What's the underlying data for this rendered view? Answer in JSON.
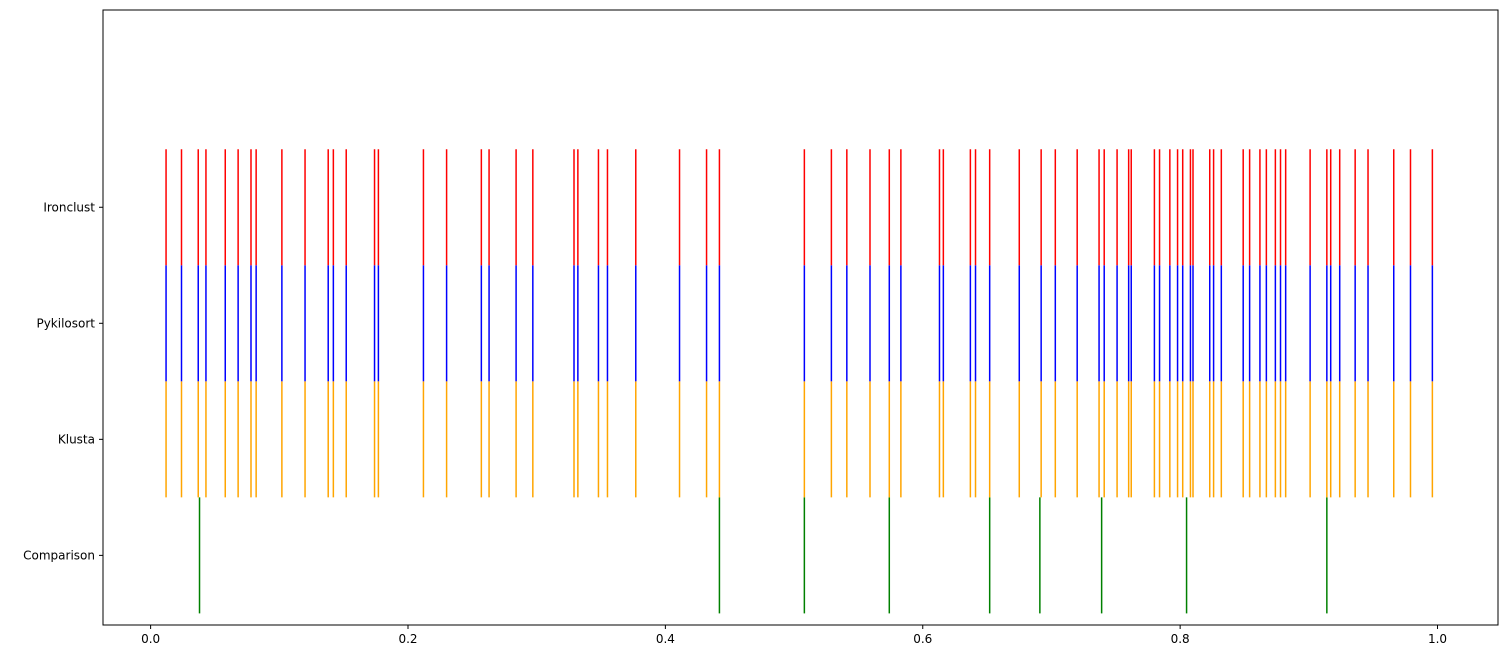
{
  "chart_data": {
    "type": "eventplot",
    "title": "",
    "xlabel": "",
    "ylabel": "",
    "xlim": [
      -0.037,
      1.047
    ],
    "ylim": [
      -0.6,
      4.7
    ],
    "x_ticks": [
      0.0,
      0.2,
      0.4,
      0.6,
      0.8,
      1.0
    ],
    "x_tick_labels": [
      "0.0",
      "0.2",
      "0.4",
      "0.6",
      "0.8",
      "1.0"
    ],
    "grid": false,
    "legend": null,
    "series": [
      {
        "label": "Comparison",
        "color": "#008000",
        "row": 0,
        "events": [
          0.038,
          0.442,
          0.508,
          0.574,
          0.652,
          0.691,
          0.739,
          0.805,
          0.914
        ]
      },
      {
        "label": "Klusta",
        "color": "#ffa500",
        "row": 1,
        "events": [
          0.012,
          0.024,
          0.037,
          0.043,
          0.058,
          0.068,
          0.078,
          0.082,
          0.102,
          0.12,
          0.138,
          0.142,
          0.152,
          0.174,
          0.177,
          0.212,
          0.23,
          0.257,
          0.263,
          0.284,
          0.297,
          0.329,
          0.332,
          0.348,
          0.355,
          0.377,
          0.411,
          0.432,
          0.442,
          0.508,
          0.529,
          0.541,
          0.559,
          0.574,
          0.583,
          0.613,
          0.616,
          0.637,
          0.641,
          0.652,
          0.675,
          0.692,
          0.703,
          0.72,
          0.737,
          0.741,
          0.751,
          0.76,
          0.762,
          0.78,
          0.784,
          0.792,
          0.798,
          0.802,
          0.808,
          0.81,
          0.823,
          0.826,
          0.832,
          0.849,
          0.854,
          0.862,
          0.867,
          0.874,
          0.878,
          0.882,
          0.901,
          0.914,
          0.917,
          0.924,
          0.936,
          0.946,
          0.966,
          0.979,
          0.996
        ]
      },
      {
        "label": "Pykilosort",
        "color": "#0000ff",
        "row": 2,
        "events": [
          0.012,
          0.024,
          0.037,
          0.043,
          0.058,
          0.068,
          0.078,
          0.082,
          0.102,
          0.12,
          0.138,
          0.142,
          0.152,
          0.174,
          0.177,
          0.212,
          0.23,
          0.257,
          0.263,
          0.284,
          0.297,
          0.329,
          0.332,
          0.348,
          0.355,
          0.377,
          0.411,
          0.432,
          0.442,
          0.508,
          0.529,
          0.541,
          0.559,
          0.574,
          0.583,
          0.613,
          0.616,
          0.637,
          0.641,
          0.652,
          0.675,
          0.692,
          0.703,
          0.72,
          0.737,
          0.741,
          0.751,
          0.76,
          0.762,
          0.78,
          0.784,
          0.792,
          0.798,
          0.802,
          0.808,
          0.81,
          0.823,
          0.826,
          0.832,
          0.849,
          0.854,
          0.862,
          0.867,
          0.874,
          0.878,
          0.882,
          0.901,
          0.914,
          0.917,
          0.924,
          0.936,
          0.946,
          0.966,
          0.979,
          0.996
        ]
      },
      {
        "label": "Ironclust",
        "color": "#ff0000",
        "row": 3,
        "events": [
          0.012,
          0.024,
          0.037,
          0.043,
          0.058,
          0.068,
          0.078,
          0.082,
          0.102,
          0.12,
          0.138,
          0.142,
          0.152,
          0.174,
          0.177,
          0.212,
          0.23,
          0.257,
          0.263,
          0.284,
          0.297,
          0.329,
          0.332,
          0.348,
          0.355,
          0.377,
          0.411,
          0.432,
          0.442,
          0.508,
          0.529,
          0.541,
          0.559,
          0.574,
          0.583,
          0.613,
          0.616,
          0.637,
          0.641,
          0.652,
          0.675,
          0.692,
          0.703,
          0.72,
          0.737,
          0.741,
          0.751,
          0.76,
          0.762,
          0.78,
          0.784,
          0.792,
          0.798,
          0.802,
          0.808,
          0.81,
          0.823,
          0.826,
          0.832,
          0.849,
          0.854,
          0.862,
          0.867,
          0.874,
          0.878,
          0.882,
          0.901,
          0.914,
          0.917,
          0.924,
          0.936,
          0.946,
          0.966,
          0.979,
          0.996
        ]
      }
    ]
  }
}
